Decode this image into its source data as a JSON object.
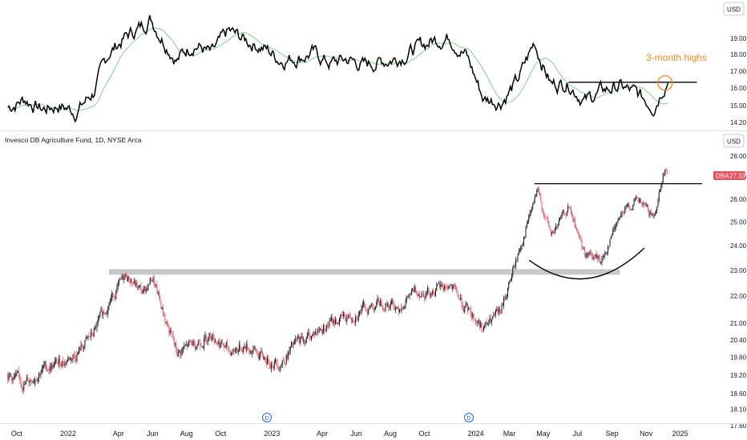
{
  "colors": {
    "background": "#ffffff",
    "price_line": "#000000",
    "moving_average": "#8fd19e",
    "candle_up": "#131722",
    "candle_down": "#e8505b",
    "annotation": "#f28c28",
    "support_band": "#c8c8c8",
    "resistance_line": "#000000",
    "price_tag": "#e8505b"
  },
  "top_panel": {
    "currency_label": "USD",
    "annotation": "3-month highs",
    "y_ticks": [
      "19.00",
      "18.00",
      "17.00",
      "16.00",
      "15.00",
      "14.20"
    ]
  },
  "main_panel": {
    "title": "Invesco DB Agriculture Fund, 1D, NYSE Arca",
    "currency_label": "USD",
    "y_ticks": [
      "28.00",
      "27.00",
      "26.00",
      "25.00",
      "24.00",
      "23.00",
      "22.00",
      "21.00",
      "20.40",
      "19.80",
      "19.20",
      "18.60",
      "18.10",
      "17.60"
    ],
    "price_tag": {
      "symbol": "DBA",
      "value": "27.33"
    }
  },
  "x_axis": {
    "labels": [
      "Oct",
      "2022",
      "Apr",
      "Jun",
      "Aug",
      "Oct",
      "2023",
      "Apr",
      "Jun",
      "Aug",
      "Oct",
      "2024",
      "Mar",
      "May",
      "Jul",
      "Sep",
      "Nov",
      "2025"
    ],
    "event_markers": [
      "D",
      "D"
    ]
  },
  "chart_data": [
    {
      "type": "line",
      "title": "",
      "series": [],
      "x": [
        "2021-09-15",
        "2021-10-15",
        "2021-11-15",
        "2021-12-15",
        "2022-01-15",
        "2022-02-15",
        "2022-03-15",
        "2022-04-15",
        "2022-05-15",
        "2022-05-28",
        "2022-06-15",
        "2022-07-15",
        "2022-08-15",
        "2022-09-15",
        "2022-10-15",
        "2022-11-15",
        "2022-12-15",
        "2023-01-15",
        "2023-02-15",
        "2023-03-15",
        "2023-04-15",
        "2023-05-15",
        "2023-06-15",
        "2023-07-15",
        "2023-08-15",
        "2023-09-15",
        "2023-10-15",
        "2023-11-15",
        "2023-12-15",
        "2024-01-15",
        "2024-02-15",
        "2024-03-15",
        "2024-04-15",
        "2024-05-15",
        "2024-06-15",
        "2024-07-15",
        "2024-08-15",
        "2024-09-15",
        "2024-10-15",
        "2024-11-15",
        "2024-12-01",
        "2024-12-10"
      ],
      "values": [
        15.0,
        15.4,
        14.9,
        15.1,
        14.8,
        15.7,
        17.6,
        18.4,
        18.9,
        19.3,
        18.5,
        17.3,
        18.1,
        17.5,
        18.6,
        18.2,
        17.9,
        17.3,
        17.4,
        17.6,
        17.1,
        17.3,
        17.0,
        17.2,
        17.4,
        17.8,
        18.2,
        18.4,
        17.5,
        15.4,
        15.3,
        16.2,
        18.1,
        16.1,
        16.2,
        15.3,
        15.8,
        16.0,
        15.6,
        15.1,
        16.0,
        16.4
      ],
      "ylim": [
        14.2,
        19.6
      ],
      "y_scale": "linear",
      "reference_lines": [
        {
          "label": "3-month highs",
          "value": 16.2,
          "from": "2024-06-15",
          "to": "2025-01-31"
        }
      ]
    },
    {
      "type": "candlestick",
      "title": "Invesco DB Agriculture Fund, 1D, NYSE Arca",
      "x": [
        "2021-09-15",
        "2021-10-15",
        "2021-11-15",
        "2021-12-15",
        "2022-01-15",
        "2022-02-15",
        "2022-03-15",
        "2022-04-15",
        "2022-05-15",
        "2022-06-01",
        "2022-06-15",
        "2022-07-15",
        "2022-08-15",
        "2022-09-15",
        "2022-10-15",
        "2022-11-15",
        "2022-12-15",
        "2023-01-15",
        "2023-02-15",
        "2023-03-15",
        "2023-04-15",
        "2023-05-15",
        "2023-06-15",
        "2023-07-15",
        "2023-08-15",
        "2023-09-15",
        "2023-10-15",
        "2023-11-15",
        "2023-12-15",
        "2024-01-15",
        "2024-02-15",
        "2024-03-15",
        "2024-04-20",
        "2024-05-15",
        "2024-06-15",
        "2024-07-15",
        "2024-08-15",
        "2024-09-15",
        "2024-10-15",
        "2024-11-15",
        "2024-12-01",
        "2024-12-10"
      ],
      "close": [
        19.2,
        18.9,
        19.4,
        19.6,
        19.9,
        20.6,
        21.8,
        22.8,
        22.1,
        22.7,
        21.7,
        19.9,
        20.3,
        20.6,
        20.0,
        20.2,
        19.8,
        19.6,
        20.3,
        20.6,
        21.0,
        21.2,
        21.5,
        21.8,
        21.6,
        22.2,
        22.2,
        22.4,
        21.5,
        20.8,
        21.4,
        23.5,
        26.3,
        24.4,
        25.6,
        23.6,
        23.4,
        25.4,
        25.9,
        25.2,
        27.2,
        27.33
      ],
      "ylim": [
        17.6,
        28.2
      ],
      "y_scale": "log",
      "reference_lines": [
        {
          "kind": "band",
          "low": 22.8,
          "high": 22.95,
          "from": "2022-03-15",
          "to": "2024-09-15"
        },
        {
          "kind": "line",
          "value": 26.7,
          "from": "2024-04-15",
          "to": "2025-01-31"
        },
        {
          "kind": "arc",
          "from": "2024-04-20",
          "to": "2024-09-30",
          "bottom": 22.6
        }
      ]
    }
  ]
}
